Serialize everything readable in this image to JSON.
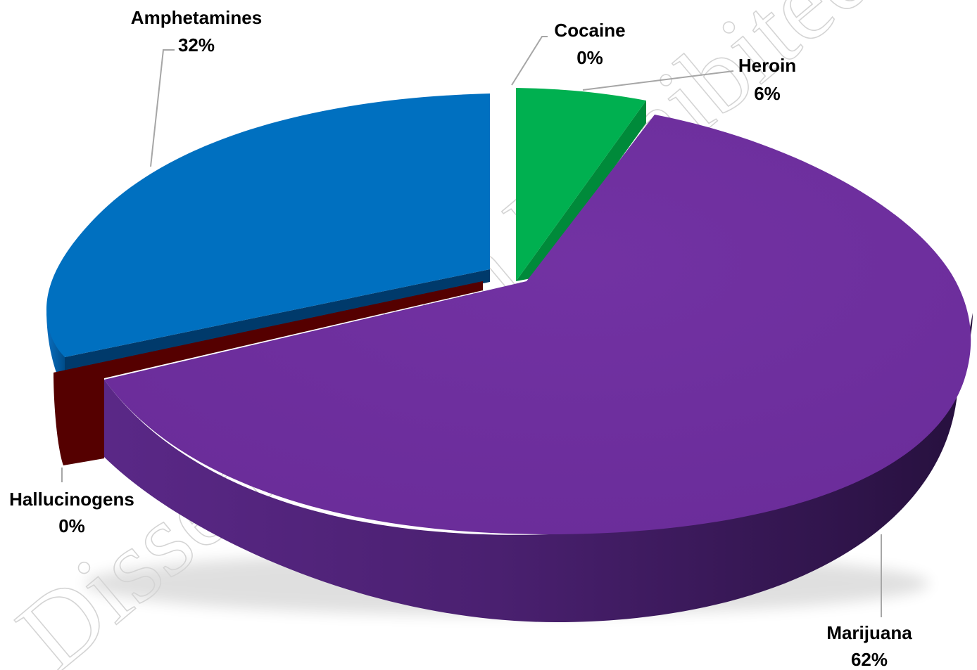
{
  "chart_data": {
    "type": "pie",
    "style": "3d-exploded",
    "slices": [
      {
        "label": "Cocaine",
        "value": 0,
        "display": "0%",
        "color": "#00b050"
      },
      {
        "label": "Heroin",
        "value": 6,
        "display": "6%",
        "color": "#00b050"
      },
      {
        "label": "Marijuana",
        "value": 62,
        "display": "62%",
        "color": "#7030a0"
      },
      {
        "label": "Hallucinogens",
        "value": 0,
        "display": "0%",
        "color": "#7f0000"
      },
      {
        "label": "Amphetamines",
        "value": 32,
        "display": "32%",
        "color": "#0070c0"
      }
    ],
    "legend": "none",
    "watermark": "Dissemination Prohibited"
  }
}
